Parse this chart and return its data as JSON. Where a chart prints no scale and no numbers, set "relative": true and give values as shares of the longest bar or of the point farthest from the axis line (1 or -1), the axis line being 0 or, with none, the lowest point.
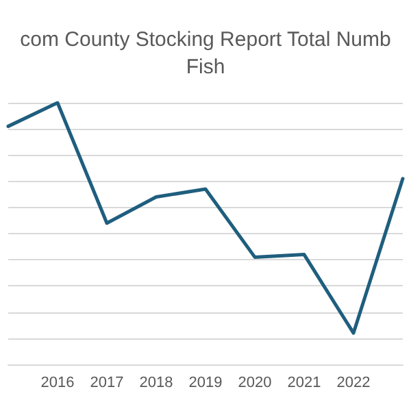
{
  "chart_data": {
    "type": "line",
    "title": "com County Stocking Report Total Numb\nFish",
    "relative": true,
    "categories": [
      null,
      "2016",
      "2017",
      "2018",
      "2019",
      "2020",
      "2021",
      "2022",
      null
    ],
    "series": [
      {
        "color": "#1f5e7e",
        "values": [
          0.91,
          1,
          0.54,
          0.64,
          0.67,
          0.41,
          0.42,
          0.12,
          0.71
        ]
      }
    ],
    "grid": "y",
    "marker": "none",
    "line_style": "solid"
  }
}
